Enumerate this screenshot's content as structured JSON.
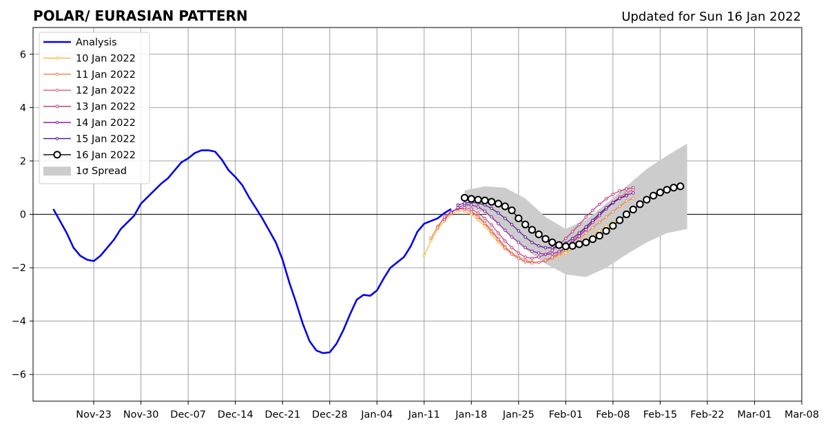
{
  "chart_data": {
    "type": "line",
    "title": "POLAR/ EURASIAN  PATTERN",
    "subtitle": "Updated for Sun 16 Jan 2022",
    "xlabel": "",
    "ylabel": "",
    "ylim": [
      -7,
      7
    ],
    "xlim": [
      "2021-11-14",
      "2022-03-08"
    ],
    "x_tick_labels": [
      "Nov-23",
      "Nov-30",
      "Dec-07",
      "Dec-14",
      "Dec-21",
      "Dec-28",
      "Jan-04",
      "Jan-11",
      "Jan-18",
      "Jan-25",
      "Feb-01",
      "Feb-08",
      "Feb-15",
      "Feb-22",
      "Mar-01",
      "Mar-08"
    ],
    "y_ticks": [
      -6,
      -4,
      -2,
      0,
      2,
      4,
      6
    ],
    "y_tick_labels": [
      "−6",
      "−4",
      "−2",
      "0",
      "2",
      "4",
      "6"
    ],
    "grid": true,
    "legend_position": "top-left",
    "analysis": {
      "name": "Analysis",
      "color": "#0000ee",
      "points": [
        [
          "2021-11-17",
          0.2
        ],
        [
          "2021-11-18",
          -0.25
        ],
        [
          "2021-11-19",
          -0.7
        ],
        [
          "2021-11-20",
          -1.25
        ],
        [
          "2021-11-21",
          -1.55
        ],
        [
          "2021-11-22",
          -1.7
        ],
        [
          "2021-11-23",
          -1.75
        ],
        [
          "2021-11-24",
          -1.55
        ],
        [
          "2021-11-25",
          -1.25
        ],
        [
          "2021-11-26",
          -0.95
        ],
        [
          "2021-11-27",
          -0.55
        ],
        [
          "2021-11-28",
          -0.3
        ],
        [
          "2021-11-29",
          -0.05
        ],
        [
          "2021-11-30",
          0.4
        ],
        [
          "2021-12-01",
          0.65
        ],
        [
          "2021-12-02",
          0.9
        ],
        [
          "2021-12-03",
          1.15
        ],
        [
          "2021-12-04",
          1.35
        ],
        [
          "2021-12-05",
          1.65
        ],
        [
          "2021-12-06",
          1.95
        ],
        [
          "2021-12-07",
          2.1
        ],
        [
          "2021-12-08",
          2.3
        ],
        [
          "2021-12-09",
          2.4
        ],
        [
          "2021-12-10",
          2.4
        ],
        [
          "2021-12-11",
          2.35
        ],
        [
          "2021-12-12",
          2.05
        ],
        [
          "2021-12-13",
          1.65
        ],
        [
          "2021-12-14",
          1.4
        ],
        [
          "2021-12-15",
          1.1
        ],
        [
          "2021-12-16",
          0.65
        ],
        [
          "2021-12-17",
          0.25
        ],
        [
          "2021-12-18",
          -0.15
        ],
        [
          "2021-12-19",
          -0.6
        ],
        [
          "2021-12-20",
          -1.05
        ],
        [
          "2021-12-21",
          -1.7
        ],
        [
          "2021-12-22",
          -2.55
        ],
        [
          "2021-12-23",
          -3.3
        ],
        [
          "2021-12-24",
          -4.1
        ],
        [
          "2021-12-25",
          -4.75
        ],
        [
          "2021-12-26",
          -5.1
        ],
        [
          "2021-12-27",
          -5.2
        ],
        [
          "2021-12-28",
          -5.17
        ],
        [
          "2021-12-29",
          -4.85
        ],
        [
          "2021-12-30",
          -4.35
        ],
        [
          "2021-12-31",
          -3.75
        ],
        [
          "2022-01-01",
          -3.2
        ],
        [
          "2022-01-02",
          -3.02
        ],
        [
          "2022-01-03",
          -3.05
        ],
        [
          "2022-01-04",
          -2.85
        ],
        [
          "2022-01-05",
          -2.4
        ],
        [
          "2022-01-06",
          -2.0
        ],
        [
          "2022-01-07",
          -1.8
        ],
        [
          "2022-01-08",
          -1.6
        ],
        [
          "2022-01-09",
          -1.2
        ],
        [
          "2022-01-10",
          -0.65
        ],
        [
          "2022-01-11",
          -0.35
        ],
        [
          "2022-01-12",
          -0.25
        ],
        [
          "2022-01-13",
          -0.15
        ],
        [
          "2022-01-14",
          0.05
        ],
        [
          "2022-01-15",
          0.2
        ]
      ]
    },
    "spread": {
      "name": "1σ Spread",
      "color": "#cccccc",
      "x": [
        "2022-01-17",
        "2022-01-20",
        "2022-01-23",
        "2022-01-26",
        "2022-01-29",
        "2022-02-01",
        "2022-02-04",
        "2022-02-07",
        "2022-02-10",
        "2022-02-13",
        "2022-02-16",
        "2022-02-19"
      ],
      "upper": [
        0.9,
        1.05,
        1.0,
        0.6,
        -0.1,
        -0.55,
        -0.2,
        0.4,
        1.05,
        1.7,
        2.2,
        2.65
      ],
      "lower": [
        0.3,
        0.05,
        -0.6,
        -1.3,
        -1.85,
        -2.25,
        -2.35,
        -2.0,
        -1.5,
        -1.05,
        -0.7,
        -0.55
      ]
    },
    "series": [
      {
        "name": "10 Jan 2022",
        "color": "#f7b731",
        "start": "2022-01-11",
        "values": [
          -1.55,
          -1.0,
          -0.55,
          -0.25,
          0.0,
          0.12,
          0.12,
          0.0,
          -0.2,
          -0.45,
          -0.75,
          -1.05,
          -1.3,
          -1.45,
          -1.6,
          -1.72,
          -1.78,
          -1.8,
          -1.75,
          -1.65,
          -1.55,
          -1.45,
          -1.3,
          -1.15,
          -0.95,
          -0.8,
          -0.62,
          -0.45,
          -0.3,
          -0.18,
          -0.05
        ]
      },
      {
        "name": "11 Jan 2022",
        "color": "#f07f40",
        "start": "2022-01-12",
        "values": [
          -0.9,
          -0.45,
          -0.1,
          0.1,
          0.2,
          0.2,
          0.1,
          -0.05,
          -0.3,
          -0.6,
          -0.9,
          -1.2,
          -1.45,
          -1.6,
          -1.72,
          -1.8,
          -1.8,
          -1.75,
          -1.65,
          -1.5,
          -1.35,
          -1.15,
          -0.95,
          -0.7,
          -0.5,
          -0.3,
          -0.1,
          0.1,
          0.3,
          0.5,
          0.6
        ]
      },
      {
        "name": "12 Jan 2022",
        "color": "#e05a6e",
        "start": "2022-01-13",
        "values": [
          -0.5,
          -0.1,
          0.1,
          0.2,
          0.2,
          0.1,
          -0.1,
          -0.35,
          -0.65,
          -0.95,
          -1.25,
          -1.5,
          -1.65,
          -1.78,
          -1.82,
          -1.8,
          -1.72,
          -1.6,
          -1.45,
          -1.25,
          -1.0,
          -0.75,
          -0.5,
          -0.25,
          0.0,
          0.25,
          0.45,
          0.65,
          0.8,
          0.92
        ]
      },
      {
        "name": "13 Jan 2022",
        "color": "#c0307c",
        "start": "2022-01-14",
        "values": [
          -0.2,
          0.1,
          0.22,
          0.25,
          0.2,
          0.05,
          -0.15,
          -0.4,
          -0.7,
          -1.0,
          -1.25,
          -1.45,
          -1.6,
          -1.65,
          -1.6,
          -1.5,
          -1.35,
          -1.15,
          -0.9,
          -0.65,
          -0.38,
          -0.1,
          0.15,
          0.38,
          0.58,
          0.75,
          0.88,
          0.95,
          1.0
        ]
      },
      {
        "name": "14 Jan 2022",
        "color": "#8a1aa0",
        "start": "2022-01-15",
        "values": [
          0.05,
          0.25,
          0.35,
          0.35,
          0.28,
          0.12,
          -0.1,
          -0.35,
          -0.6,
          -0.85,
          -1.05,
          -1.25,
          -1.38,
          -1.45,
          -1.5,
          -1.48,
          -1.4,
          -1.25,
          -1.05,
          -0.82,
          -0.57,
          -0.3,
          -0.05,
          0.2,
          0.42,
          0.6,
          0.72,
          0.8
        ]
      },
      {
        "name": "15 Jan 2022",
        "color": "#4a0c8c",
        "start": "2022-01-16",
        "values": [
          0.35,
          0.42,
          0.45,
          0.42,
          0.35,
          0.22,
          0.05,
          -0.15,
          -0.38,
          -0.62,
          -0.85,
          -1.05,
          -1.18,
          -1.25,
          -1.25,
          -1.2,
          -1.08,
          -0.9,
          -0.7,
          -0.47,
          -0.22,
          0.03,
          0.25,
          0.45,
          0.6,
          0.7
        ]
      },
      {
        "name": "16 Jan 2022",
        "color": "#000000",
        "start": "2022-01-17",
        "values": [
          0.62,
          0.58,
          0.55,
          0.52,
          0.47,
          0.4,
          0.3,
          0.15,
          -0.15,
          -0.38,
          -0.58,
          -0.75,
          -0.92,
          -1.05,
          -1.15,
          -1.2,
          -1.18,
          -1.12,
          -1.05,
          -0.93,
          -0.8,
          -0.62,
          -0.43,
          -0.22,
          0.0,
          0.18,
          0.38,
          0.55,
          0.7,
          0.82,
          0.92,
          1.0,
          1.05
        ]
      }
    ]
  }
}
